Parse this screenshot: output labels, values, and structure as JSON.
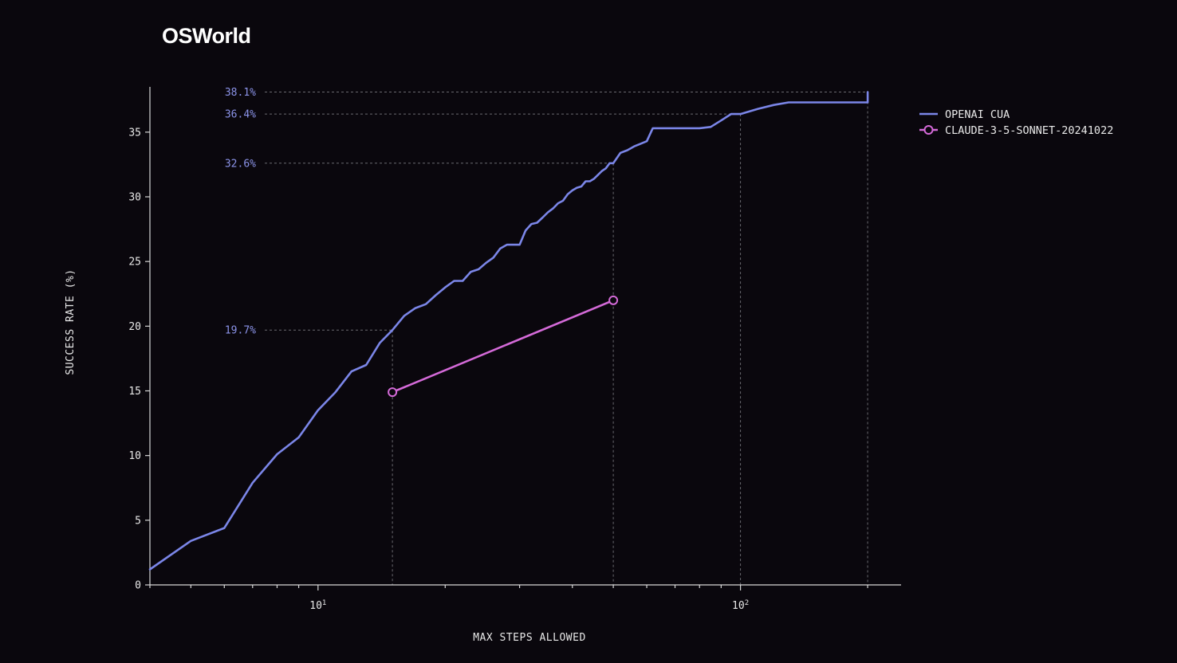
{
  "title": "OSWorld",
  "chart_data": {
    "type": "line",
    "xlabel": "MAX STEPS ALLOWED",
    "ylabel": "SUCCESS RATE (%)",
    "xscale": "log",
    "xlim": [
      4,
      240
    ],
    "ylim": [
      0,
      38.5
    ],
    "x_tick_labels": [
      {
        "value": 10,
        "base": "10",
        "exp": "1"
      },
      {
        "value": 100,
        "base": "10",
        "exp": "2"
      }
    ],
    "y_ticks": [
      0,
      5,
      10,
      15,
      20,
      25,
      30,
      35
    ],
    "series": [
      {
        "name": "OPENAI CUA",
        "color": "#7b86e8",
        "marker": "none",
        "x": [
          4,
          5,
          6,
          7,
          8,
          9,
          10,
          11,
          12,
          13,
          14,
          15,
          16,
          17,
          18,
          19,
          20,
          21,
          22,
          23,
          24,
          25,
          26,
          27,
          28,
          29,
          30,
          31,
          32,
          33,
          34,
          35,
          36,
          37,
          38,
          39,
          40,
          41,
          42,
          43,
          44,
          45,
          46,
          47,
          48,
          49,
          50,
          52,
          54,
          56,
          58,
          60,
          62,
          64,
          66,
          70,
          75,
          80,
          85,
          90,
          95,
          100,
          110,
          120,
          130,
          150,
          175,
          200,
          200
        ],
        "y": [
          1.2,
          3.4,
          4.4,
          7.9,
          10.1,
          11.4,
          13.5,
          14.9,
          16.5,
          17.0,
          18.7,
          19.7,
          20.8,
          21.4,
          21.7,
          22.4,
          23.0,
          23.5,
          23.5,
          24.2,
          24.4,
          24.9,
          25.3,
          26.0,
          26.3,
          26.3,
          26.3,
          27.4,
          27.9,
          28.0,
          28.4,
          28.8,
          29.1,
          29.5,
          29.7,
          30.2,
          30.5,
          30.7,
          30.8,
          31.2,
          31.2,
          31.4,
          31.7,
          32.0,
          32.2,
          32.6,
          32.6,
          33.4,
          33.6,
          33.9,
          34.1,
          34.3,
          35.3,
          35.3,
          35.3,
          35.3,
          35.3,
          35.3,
          35.4,
          35.9,
          36.4,
          36.4,
          36.8,
          37.1,
          37.3,
          37.3,
          37.3,
          37.3,
          38.1
        ]
      },
      {
        "name": "CLAUDE-3-5-SONNET-20241022",
        "color": "#d46ad8",
        "marker": "open-circle",
        "x": [
          15,
          50
        ],
        "y": [
          14.9,
          22.0
        ]
      }
    ],
    "annotations": [
      {
        "label": "38.1%",
        "x": 200,
        "y": 38.1
      },
      {
        "label": "36.4%",
        "x": 100,
        "y": 36.4
      },
      {
        "label": "32.6%",
        "x": 50,
        "y": 32.6
      },
      {
        "label": "19.7%",
        "x": 15,
        "y": 19.7
      }
    ],
    "legend_position": "top-right",
    "grid": false
  }
}
